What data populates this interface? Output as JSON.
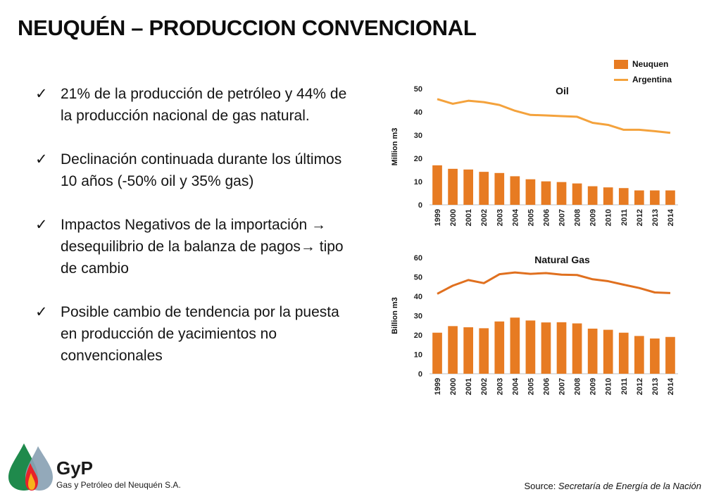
{
  "slide": {
    "title": "NEUQUÉN – PRODUCCION CONVENCIONAL",
    "bullets": [
      "21% de la producción de petróleo  y 44% de la producción nacional de gas natural.",
      "Declinación continuada durante los últimos  10 años  (-50% oil y 35% gas)",
      "Impactos Negativos de la importación → desequilibrio de la balanza de pagos→ tipo de cambio",
      "Posible cambio de tendencia por la puesta en producción de yacimientos no convencionales"
    ],
    "check_glyph": "✓",
    "source_label": "Source: ",
    "source_text": "Secretaría de Energía de la Nación",
    "logo_name": "GyP",
    "logo_subtitle": "Gas y Petróleo del Neuquén S.A."
  },
  "legend": {
    "bar_label": "Neuquen",
    "line_label": "Argentina"
  },
  "colors": {
    "bar": "#e77b22",
    "line_oil": "#f4a23c",
    "line_gas": "#e0701f",
    "axis": "#bfbfbf"
  },
  "chart_data": [
    {
      "type": "bar",
      "title": "Oil",
      "ylabel": "Million m3",
      "ylim": [
        0,
        50
      ],
      "yticks": [
        0,
        10,
        20,
        30,
        40,
        50
      ],
      "categories": [
        "1999",
        "2000",
        "2001",
        "2002",
        "2003",
        "2004",
        "2005",
        "2006",
        "2007",
        "2008",
        "2009",
        "2010",
        "2011",
        "2012",
        "2013",
        "2014"
      ],
      "series": [
        {
          "name": "Neuquen",
          "kind": "bar",
          "values": [
            17,
            15.5,
            15.2,
            14.2,
            13.7,
            12.3,
            11,
            10.1,
            9.8,
            9.2,
            8,
            7.5,
            7.2,
            6.2,
            6.2,
            6.2
          ]
        },
        {
          "name": "Argentina",
          "kind": "line",
          "values": [
            45.5,
            43.5,
            44.8,
            44.2,
            43,
            40.5,
            38.7,
            38.5,
            38.2,
            37.9,
            35.3,
            34.4,
            32.3,
            32.3,
            31.7,
            31
          ]
        }
      ]
    },
    {
      "type": "bar",
      "title": "Natural Gas",
      "ylabel": "Billion m3",
      "ylim": [
        0,
        60
      ],
      "yticks": [
        0,
        10,
        20,
        30,
        40,
        50,
        60
      ],
      "categories": [
        "1999",
        "2000",
        "2001",
        "2002",
        "2003",
        "2004",
        "2005",
        "2006",
        "2007",
        "2008",
        "2009",
        "2010",
        "2011",
        "2012",
        "2013",
        "2014"
      ],
      "series": [
        {
          "name": "Neuquen",
          "kind": "bar",
          "values": [
            21.2,
            24.6,
            24,
            23.5,
            27,
            29,
            27.5,
            26.5,
            26.6,
            26,
            23.3,
            22.7,
            21.2,
            19.5,
            18.2,
            19
          ]
        },
        {
          "name": "Argentina",
          "kind": "line",
          "values": [
            41.3,
            45.5,
            48.4,
            46.8,
            51.4,
            52.3,
            51.6,
            52,
            51.2,
            51,
            48.8,
            47.8,
            46,
            44.3,
            42,
            41.7
          ]
        }
      ]
    }
  ]
}
